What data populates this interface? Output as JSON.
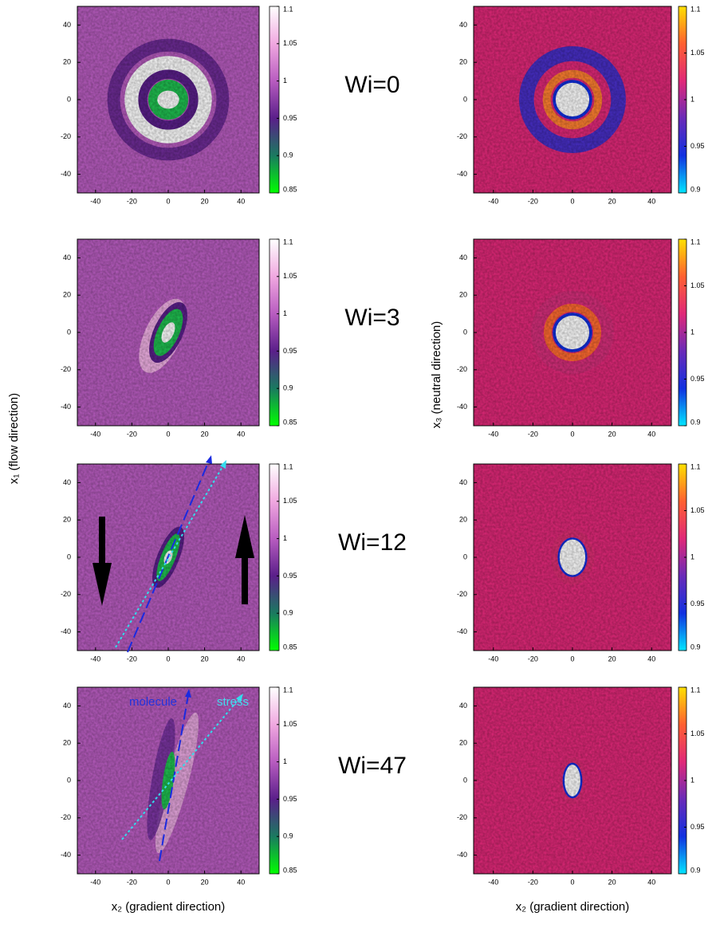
{
  "chart_data": [
    {
      "type": "heatmap",
      "title": "Wi=0",
      "ylabel": "x₁ (flow direction)",
      "xlim": [
        -50,
        50
      ],
      "ylim": [
        -50,
        50
      ],
      "xticks": [
        -40,
        -20,
        0,
        20,
        40
      ],
      "yticks": [
        -40,
        -20,
        0,
        20,
        40
      ],
      "clim": [
        0.85,
        1.1
      ],
      "cticks": [
        0.85,
        0.9,
        0.95,
        1,
        1.05,
        1.1
      ],
      "colormap": [
        "#00ff00",
        "#1a7a60",
        "#5a1f8a",
        "#b85cc0",
        "#f0a8e0",
        "#ffffff"
      ]
    },
    {
      "type": "heatmap",
      "title": "Wi=3",
      "xlim": [
        -50,
        50
      ],
      "ylim": [
        -50,
        50
      ],
      "xticks": [
        -40,
        -20,
        0,
        20,
        40
      ],
      "yticks": [
        -40,
        -20,
        0,
        20,
        40
      ],
      "clim": [
        0.85,
        1.1
      ],
      "cticks": [
        0.85,
        0.9,
        0.95,
        1,
        1.05,
        1.1
      ],
      "colormap": [
        "#00ff00",
        "#1a7a60",
        "#5a1f8a",
        "#b85cc0",
        "#f0a8e0",
        "#ffffff"
      ]
    },
    {
      "type": "heatmap",
      "title": "Wi=12",
      "xlim": [
        -50,
        50
      ],
      "ylim": [
        -50,
        50
      ],
      "xticks": [
        -40,
        -20,
        0,
        20,
        40
      ],
      "yticks": [
        -40,
        -20,
        0,
        20,
        40
      ],
      "clim": [
        0.85,
        1.1
      ],
      "cticks": [
        0.85,
        0.9,
        0.95,
        1,
        1.05,
        1.1
      ],
      "colormap": [
        "#00ff00",
        "#1a7a60",
        "#5a1f8a",
        "#b85cc0",
        "#f0a8e0",
        "#ffffff"
      ]
    },
    {
      "type": "heatmap",
      "title": "Wi=47",
      "xlabel": "x₂ (gradient direction)",
      "annotations": [
        "molecule",
        "stress"
      ],
      "xlim": [
        -50,
        50
      ],
      "ylim": [
        -50,
        50
      ],
      "xticks": [
        -40,
        -20,
        0,
        20,
        40
      ],
      "yticks": [
        -40,
        -20,
        0,
        20,
        40
      ],
      "clim": [
        0.85,
        1.1
      ],
      "cticks": [
        0.85,
        0.9,
        0.95,
        1,
        1.05,
        1.1
      ],
      "colormap": [
        "#00ff00",
        "#1a7a60",
        "#5a1f8a",
        "#b85cc0",
        "#f0a8e0",
        "#ffffff"
      ]
    },
    {
      "type": "heatmap",
      "ylabel": "x₃ (neutral direction)",
      "xlim": [
        -50,
        50
      ],
      "ylim": [
        -50,
        50
      ],
      "xticks": [
        -40,
        -20,
        0,
        20,
        40
      ],
      "yticks": [
        -40,
        -20,
        0,
        20,
        40
      ],
      "clim": [
        0.9,
        1.1
      ],
      "cticks": [
        0.9,
        0.95,
        1,
        1.05,
        1.1
      ],
      "colormap": [
        "#00e5ff",
        "#1030e0",
        "#6a2ab8",
        "#e02878",
        "#ff6030",
        "#ffe000"
      ]
    },
    {
      "type": "heatmap",
      "xlim": [
        -50,
        50
      ],
      "ylim": [
        -50,
        50
      ],
      "xticks": [
        -40,
        -20,
        0,
        20,
        40
      ],
      "yticks": [
        -40,
        -20,
        0,
        20,
        40
      ],
      "clim": [
        0.9,
        1.1
      ],
      "cticks": [
        0.9,
        0.95,
        1,
        1.05,
        1.1
      ],
      "colormap": [
        "#00e5ff",
        "#1030e0",
        "#6a2ab8",
        "#e02878",
        "#ff6030",
        "#ffe000"
      ]
    },
    {
      "type": "heatmap",
      "xlim": [
        -50,
        50
      ],
      "ylim": [
        -50,
        50
      ],
      "xticks": [
        -40,
        -20,
        0,
        20,
        40
      ],
      "yticks": [
        -40,
        -20,
        0,
        20,
        40
      ],
      "clim": [
        0.9,
        1.1
      ],
      "cticks": [
        0.9,
        0.95,
        1,
        1.05,
        1.1
      ],
      "colormap": [
        "#00e5ff",
        "#1030e0",
        "#6a2ab8",
        "#e02878",
        "#ff6030",
        "#ffe000"
      ]
    },
    {
      "type": "heatmap",
      "xlabel": "x₂ (gradient direction)",
      "xlim": [
        -50,
        50
      ],
      "ylim": [
        -50,
        50
      ],
      "xticks": [
        -40,
        -20,
        0,
        20,
        40
      ],
      "yticks": [
        -40,
        -20,
        0,
        20,
        40
      ],
      "clim": [
        0.9,
        1.1
      ],
      "cticks": [
        0.9,
        0.95,
        1,
        1.05,
        1.1
      ],
      "colormap": [
        "#00e5ff",
        "#1030e0",
        "#6a2ab8",
        "#e02878",
        "#ff6030",
        "#ffe000"
      ]
    }
  ]
}
